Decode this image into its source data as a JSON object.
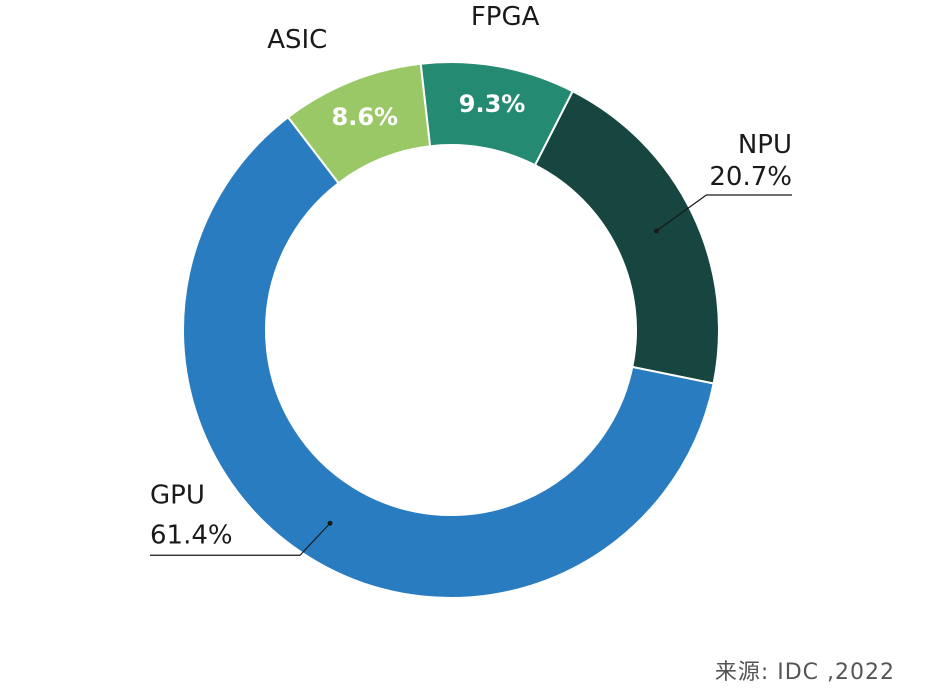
{
  "chart_data": {
    "type": "pie",
    "donut": true,
    "legend": "none",
    "unit": "%",
    "slices": [
      {
        "category": "NPU",
        "value": 20.7,
        "value_label": "20.7%",
        "color": "#17453f",
        "label_style": "outside"
      },
      {
        "category": "GPU",
        "value": 61.4,
        "value_label": "61.4%",
        "color": "#2a7cc1",
        "label_style": "outside"
      },
      {
        "category": "ASIC",
        "value": 8.6,
        "value_label": "8.6%",
        "color": "#9bc866",
        "label_style": "inside"
      },
      {
        "category": "FPGA",
        "value": 9.3,
        "value_label": "9.3%",
        "color": "#258a72",
        "label_style": "inside"
      }
    ]
  },
  "source": "来源: IDC ,2022"
}
